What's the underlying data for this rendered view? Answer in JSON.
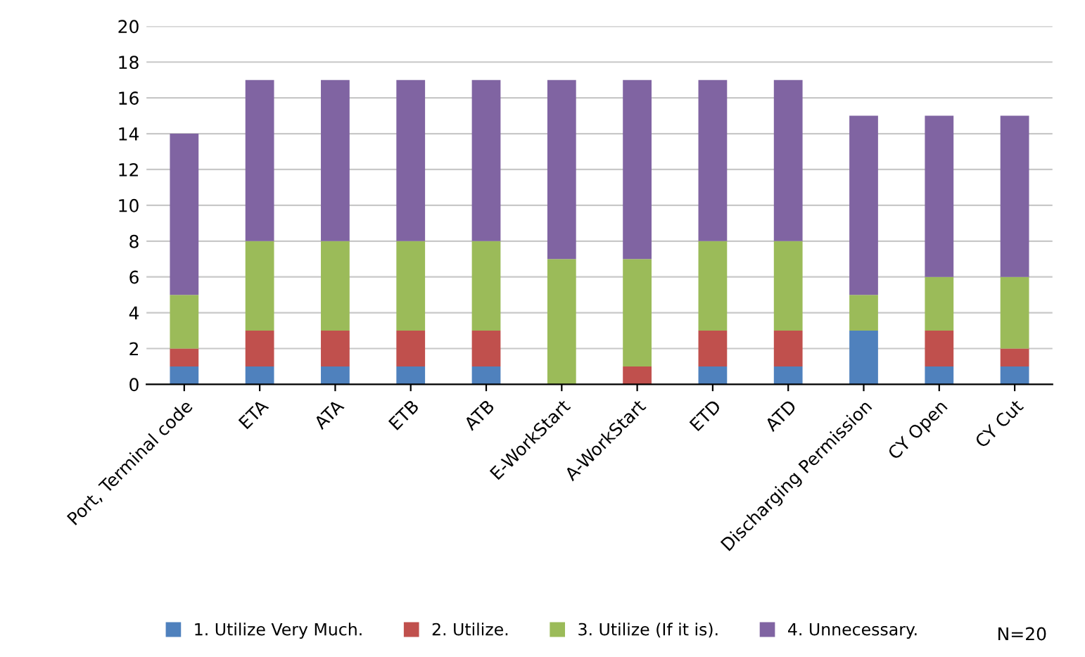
{
  "chart_data": {
    "type": "bar",
    "stacked": true,
    "categories": [
      "Port, Terminal code",
      "ETA",
      "ATA",
      "ETB",
      "ATB",
      "E-WorkStart",
      "A-WorkStart",
      "ETD",
      "ATD",
      "Discharging Permission",
      "CY Open",
      "CY Cut"
    ],
    "series": [
      {
        "name": "1. Utilize Very Much.",
        "color": "#4f81bd",
        "values": [
          1,
          1,
          1,
          1,
          1,
          0,
          0,
          1,
          1,
          3,
          1,
          1
        ]
      },
      {
        "name": "2. Utilize.",
        "color": "#c0504d",
        "values": [
          1,
          2,
          2,
          2,
          2,
          0,
          1,
          2,
          2,
          0,
          2,
          1
        ]
      },
      {
        "name": "3. Utilize (If it is).",
        "color": "#9bbb59",
        "values": [
          3,
          5,
          5,
          5,
          5,
          7,
          6,
          5,
          5,
          2,
          3,
          4
        ]
      },
      {
        "name": "4. Unnecessary.",
        "color": "#8064a2",
        "values": [
          9,
          9,
          9,
          9,
          9,
          10,
          10,
          9,
          9,
          10,
          9,
          9
        ]
      }
    ],
    "ylim": [
      0,
      20
    ],
    "yticks": [
      0,
      2,
      4,
      6,
      8,
      10,
      12,
      14,
      16,
      18,
      20
    ],
    "grid": "y",
    "legend": "bottom",
    "annotations": [
      "N=20"
    ]
  }
}
